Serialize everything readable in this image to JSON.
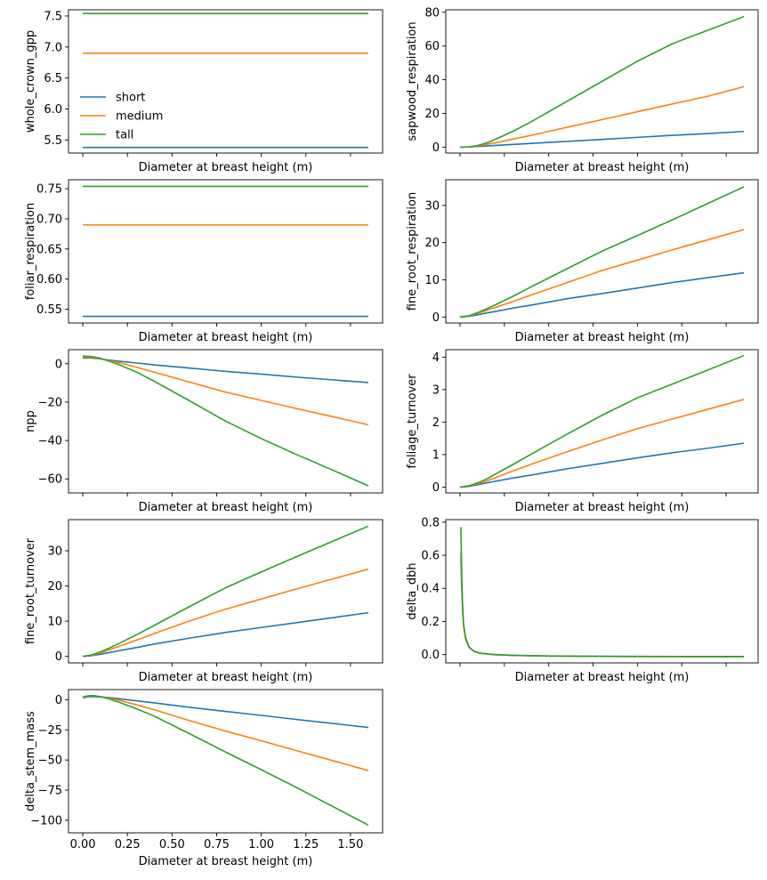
{
  "figure": {
    "colors": {
      "short": "#1f77b4",
      "medium": "#ff7f0e",
      "tall": "#2ca02c",
      "axes": "#000000",
      "background": "#ffffff"
    },
    "series_names": [
      "short",
      "medium",
      "tall"
    ]
  },
  "chart_data": [
    {
      "type": "line",
      "xlabel": "Diameter at breast height (m)",
      "ylabel": "whole_crown_gpp",
      "xlim": [
        -0.08,
        1.68
      ],
      "ylim": [
        5.29,
        7.6
      ],
      "x_tick_values": [
        0,
        0.25,
        0.5,
        0.75,
        1.0,
        1.25,
        1.5
      ],
      "x_tick_labels_visible": false,
      "yticks": [
        5.5,
        6.0,
        6.5,
        7.0,
        7.5
      ],
      "ytick_labels": [
        "5.5",
        "6.0",
        "6.5",
        "7.0",
        "7.5"
      ],
      "legend": {
        "position": "center-left",
        "entries": [
          "short",
          "medium",
          "tall"
        ]
      },
      "grid": false,
      "x": [
        0.0,
        1.6
      ],
      "series": [
        {
          "name": "short",
          "values": [
            5.38,
            5.38
          ]
        },
        {
          "name": "medium",
          "values": [
            6.9,
            6.9
          ]
        },
        {
          "name": "tall",
          "values": [
            7.54,
            7.54
          ]
        }
      ]
    },
    {
      "type": "line",
      "xlabel": "Diameter at breast height (m)",
      "ylabel": "sapwood_respiration",
      "xlim": [
        -0.08,
        1.68
      ],
      "ylim": [
        -3.5,
        81.5
      ],
      "x_tick_values": [
        0,
        0.25,
        0.5,
        0.75,
        1.0,
        1.25,
        1.5
      ],
      "x_tick_labels_visible": false,
      "yticks": [
        0,
        20,
        40,
        60,
        80
      ],
      "ytick_labels": [
        "0",
        "20",
        "40",
        "60",
        "80"
      ],
      "grid": false,
      "x": [
        0.0,
        0.05,
        0.1,
        0.15,
        0.2,
        0.3,
        0.4,
        0.6,
        0.8,
        1.0,
        1.2,
        1.4,
        1.6
      ],
      "series": [
        {
          "name": "short",
          "values": [
            0.0,
            0.1,
            0.4,
            0.7,
            1.0,
            1.6,
            2.2,
            3.4,
            4.6,
            5.8,
            7.0,
            8.1,
            9.3
          ]
        },
        {
          "name": "medium",
          "values": [
            0.0,
            0.1,
            0.7,
            1.6,
            2.6,
            4.8,
            7.0,
            11.7,
            16.3,
            21.0,
            25.7,
            30.3,
            35.9
          ]
        },
        {
          "name": "tall",
          "values": [
            0.0,
            0.2,
            1.0,
            2.5,
            4.6,
            9.5,
            15.0,
            27.0,
            39.0,
            51.0,
            61.5,
            69.5,
            77.5
          ]
        }
      ]
    },
    {
      "type": "line",
      "xlabel": "Diameter at breast height (m)",
      "ylabel": "foliar_respiration",
      "xlim": [
        -0.08,
        1.68
      ],
      "ylim": [
        0.527,
        0.765
      ],
      "x_tick_values": [
        0,
        0.25,
        0.5,
        0.75,
        1.0,
        1.25,
        1.5
      ],
      "x_tick_labels_visible": false,
      "yticks": [
        0.55,
        0.6,
        0.65,
        0.7,
        0.75
      ],
      "ytick_labels": [
        "0.55",
        "0.60",
        "0.65",
        "0.70",
        "0.75"
      ],
      "grid": false,
      "x": [
        0.0,
        1.6
      ],
      "series": [
        {
          "name": "short",
          "values": [
            0.538,
            0.538
          ]
        },
        {
          "name": "medium",
          "values": [
            0.69,
            0.69
          ]
        },
        {
          "name": "tall",
          "values": [
            0.754,
            0.754
          ]
        }
      ]
    },
    {
      "type": "line",
      "xlabel": "Diameter at breast height (m)",
      "ylabel": "fine_root_respiration",
      "xlim": [
        -0.08,
        1.68
      ],
      "ylim": [
        -1.6,
        36.9
      ],
      "x_tick_values": [
        0,
        0.25,
        0.5,
        0.75,
        1.0,
        1.25,
        1.5
      ],
      "x_tick_labels_visible": false,
      "yticks": [
        0,
        10,
        20,
        30
      ],
      "ytick_labels": [
        "0",
        "10",
        "20",
        "30"
      ],
      "grid": false,
      "x": [
        0.0,
        0.05,
        0.1,
        0.15,
        0.2,
        0.3,
        0.4,
        0.6,
        0.8,
        1.0,
        1.2,
        1.4,
        1.6
      ],
      "series": [
        {
          "name": "short",
          "values": [
            0.0,
            0.2,
            0.6,
            1.1,
            1.5,
            2.4,
            3.2,
            4.9,
            6.3,
            7.8,
            9.3,
            10.6,
            11.9
          ]
        },
        {
          "name": "medium",
          "values": [
            0.0,
            0.3,
            1.0,
            1.8,
            2.6,
            4.2,
            5.9,
            9.2,
            12.5,
            15.3,
            18.1,
            20.8,
            23.5
          ]
        },
        {
          "name": "tall",
          "values": [
            0.0,
            0.3,
            1.2,
            2.2,
            3.3,
            5.6,
            8.1,
            12.9,
            17.7,
            21.9,
            26.2,
            30.6,
            35.0
          ]
        }
      ]
    },
    {
      "type": "line",
      "xlabel": "Diameter at breast height (m)",
      "ylabel": "npp",
      "xlim": [
        -0.08,
        1.68
      ],
      "ylim": [
        -67.3,
        7.3
      ],
      "x_tick_values": [
        0,
        0.25,
        0.5,
        0.75,
        1.0,
        1.25,
        1.5
      ],
      "x_tick_labels_visible": false,
      "yticks": [
        0,
        -20,
        -40,
        -60
      ],
      "ytick_labels": [
        "0",
        "−20",
        "−40",
        "−60"
      ],
      "grid": false,
      "x": [
        0.0,
        0.05,
        0.1,
        0.15,
        0.2,
        0.3,
        0.4,
        0.6,
        0.8,
        1.0,
        1.2,
        1.4,
        1.6
      ],
      "series": [
        {
          "name": "short",
          "values": [
            3.0,
            2.9,
            2.5,
            1.9,
            1.3,
            0.4,
            -0.6,
            -2.3,
            -4.0,
            -5.4,
            -7.0,
            -8.4,
            -9.8
          ]
        },
        {
          "name": "medium",
          "values": [
            3.5,
            3.2,
            2.6,
            1.6,
            0.6,
            -1.8,
            -4.4,
            -9.6,
            -14.8,
            -19.1,
            -23.4,
            -27.6,
            -31.8
          ]
        },
        {
          "name": "tall",
          "values": [
            4.0,
            3.7,
            2.8,
            1.2,
            -0.4,
            -4.3,
            -9.1,
            -19.4,
            -29.9,
            -39.0,
            -47.4,
            -55.4,
            -63.6
          ]
        }
      ]
    },
    {
      "type": "line",
      "xlabel": "Diameter at breast height (m)",
      "ylabel": "foliage_turnover",
      "xlim": [
        -0.08,
        1.68
      ],
      "ylim": [
        -0.18,
        4.23
      ],
      "x_tick_values": [
        0,
        0.25,
        0.5,
        0.75,
        1.0,
        1.25,
        1.5
      ],
      "x_tick_labels_visible": false,
      "yticks": [
        0,
        1,
        2,
        3,
        4
      ],
      "ytick_labels": [
        "0",
        "1",
        "2",
        "3",
        "4"
      ],
      "grid": false,
      "x": [
        0.0,
        0.05,
        0.1,
        0.15,
        0.2,
        0.3,
        0.4,
        0.6,
        0.8,
        1.0,
        1.2,
        1.4,
        1.6
      ],
      "series": [
        {
          "name": "short",
          "values": [
            0.0,
            0.02,
            0.07,
            0.13,
            0.18,
            0.28,
            0.37,
            0.56,
            0.73,
            0.9,
            1.06,
            1.2,
            1.35
          ]
        },
        {
          "name": "medium",
          "values": [
            0.0,
            0.03,
            0.1,
            0.19,
            0.29,
            0.5,
            0.7,
            1.08,
            1.45,
            1.8,
            2.1,
            2.4,
            2.7
          ]
        },
        {
          "name": "tall",
          "values": [
            0.0,
            0.04,
            0.13,
            0.25,
            0.4,
            0.7,
            1.01,
            1.62,
            2.21,
            2.75,
            3.18,
            3.61,
            4.05
          ]
        }
      ]
    },
    {
      "type": "line",
      "xlabel": "Diameter at breast height (m)",
      "ylabel": "fine_root_turnover",
      "xlim": [
        -0.08,
        1.68
      ],
      "ylim": [
        -1.85,
        38.85
      ],
      "x_tick_values": [
        0,
        0.25,
        0.5,
        0.75,
        1.0,
        1.25,
        1.5
      ],
      "x_tick_labels_visible": false,
      "yticks": [
        0,
        10,
        20,
        30
      ],
      "ytick_labels": [
        "0",
        "10",
        "20",
        "30"
      ],
      "grid": false,
      "x": [
        0.0,
        0.05,
        0.1,
        0.15,
        0.2,
        0.3,
        0.4,
        0.6,
        0.8,
        1.0,
        1.2,
        1.4,
        1.6
      ],
      "series": [
        {
          "name": "short",
          "values": [
            0.0,
            0.2,
            0.6,
            1.1,
            1.6,
            2.5,
            3.5,
            5.2,
            6.8,
            8.2,
            9.6,
            11.0,
            12.4
          ]
        },
        {
          "name": "medium",
          "values": [
            0.0,
            0.3,
            1.0,
            1.9,
            2.8,
            4.6,
            6.5,
            10.1,
            13.4,
            16.3,
            19.2,
            22.0,
            24.8
          ]
        },
        {
          "name": "tall",
          "values": [
            0.0,
            0.4,
            1.3,
            2.4,
            3.6,
            6.1,
            8.8,
            14.2,
            19.5,
            24.0,
            28.4,
            32.7,
            37.0
          ]
        }
      ]
    },
    {
      "type": "line",
      "xlabel": "Diameter at breast height (m)",
      "ylabel": "delta_dbh",
      "xlim": [
        -0.08,
        1.68
      ],
      "ylim": [
        -0.05,
        0.815
      ],
      "x_tick_values": [
        0,
        0.25,
        0.5,
        0.75,
        1.0,
        1.25,
        1.5
      ],
      "x_tick_labels_visible": false,
      "yticks": [
        0.0,
        0.2,
        0.4,
        0.6,
        0.8
      ],
      "ytick_labels": [
        "0.0",
        "0.2",
        "0.4",
        "0.6",
        "0.8"
      ],
      "grid": false,
      "x": [
        0.005,
        0.01,
        0.015,
        0.02,
        0.03,
        0.05,
        0.08,
        0.12,
        0.2,
        0.3,
        0.5,
        0.8,
        1.2,
        1.6
      ],
      "series": [
        {
          "name": "short",
          "values": [
            0.58,
            0.4,
            0.26,
            0.18,
            0.1,
            0.045,
            0.02,
            0.008,
            0.0,
            -0.004,
            -0.008,
            -0.01,
            -0.011,
            -0.012
          ]
        },
        {
          "name": "medium",
          "values": [
            0.62,
            0.42,
            0.27,
            0.18,
            0.1,
            0.045,
            0.02,
            0.007,
            -0.001,
            -0.005,
            -0.009,
            -0.011,
            -0.012,
            -0.013
          ]
        },
        {
          "name": "tall",
          "values": [
            0.77,
            0.47,
            0.29,
            0.19,
            0.11,
            0.047,
            0.02,
            0.007,
            -0.001,
            -0.005,
            -0.009,
            -0.011,
            -0.012,
            -0.013
          ]
        }
      ]
    },
    {
      "type": "line",
      "xlabel": "Diameter at breast height (m)",
      "ylabel": "delta_stem_mass",
      "xlim": [
        -0.08,
        1.68
      ],
      "ylim": [
        -110.4,
        8.4
      ],
      "x_tick_values": [
        0,
        0.25,
        0.5,
        0.75,
        1.0,
        1.25,
        1.5
      ],
      "x_tick_labels_visible": true,
      "xticks": [
        0.0,
        0.25,
        0.5,
        0.75,
        1.0,
        1.25,
        1.5
      ],
      "xtick_labels": [
        "0.00",
        "0.25",
        "0.50",
        "0.75",
        "1.00",
        "1.25",
        "1.50"
      ],
      "yticks": [
        0,
        -25,
        -50,
        -75,
        -100
      ],
      "ytick_labels": [
        "0",
        "−25",
        "−50",
        "−75",
        "−100"
      ],
      "grid": false,
      "x": [
        0.0,
        0.03,
        0.06,
        0.1,
        0.15,
        0.2,
        0.3,
        0.4,
        0.6,
        0.8,
        1.0,
        1.2,
        1.4,
        1.6
      ],
      "series": [
        {
          "name": "short",
          "values": [
            1.5,
            2.4,
            2.6,
            2.3,
            1.7,
            0.9,
            -0.9,
            -2.6,
            -6.3,
            -9.7,
            -13.0,
            -16.4,
            -19.7,
            -23.0
          ]
        },
        {
          "name": "medium",
          "values": [
            2.0,
            3.0,
            3.2,
            2.6,
            1.3,
            -0.3,
            -4.2,
            -8.3,
            -17.4,
            -26.0,
            -34.0,
            -42.3,
            -50.5,
            -58.8
          ]
        },
        {
          "name": "tall",
          "values": [
            2.2,
            3.3,
            3.4,
            2.5,
            0.6,
            -1.9,
            -7.5,
            -13.6,
            -28.3,
            -43.4,
            -58.0,
            -73.0,
            -88.5,
            -104.0
          ]
        }
      ]
    }
  ]
}
